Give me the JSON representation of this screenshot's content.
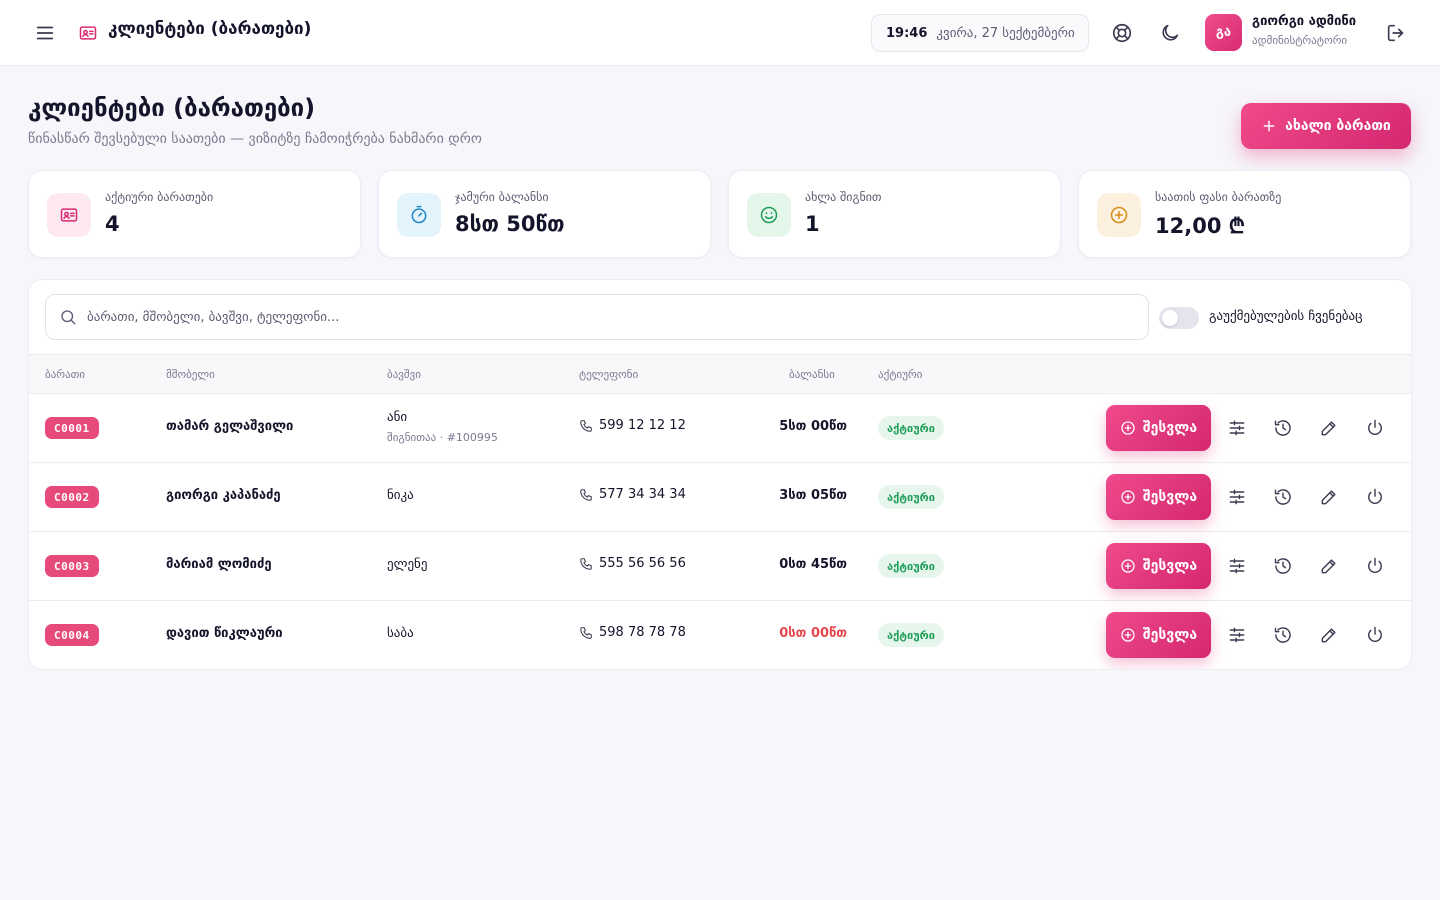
{
  "header": {
    "title": "კლიენტები (ბარათები)",
    "clock_time": "19:46",
    "clock_date": "კვირა, 27 სექტემბერი",
    "user": {
      "initials": "გა",
      "name": "გიორგი ადმინი",
      "role": "ადმინისტრატორი"
    }
  },
  "page": {
    "title": "კლიენტები (ბარათები)",
    "subtitle": "წინასწარ შევსებული საათები — ვიზიტზე ჩამოიჭრება ნახმარი დრო",
    "new_button": "ახალი ბარათი"
  },
  "stats": [
    {
      "label": "აქტიური ბარათები",
      "value": "4",
      "icon": "id-card-icon",
      "color": "#d92b73"
    },
    {
      "label": "ჯამური ბალანსი",
      "value": "8სთ 50წთ",
      "icon": "timer-icon",
      "color": "#1e88c7"
    },
    {
      "label": "ახლა შიგნით",
      "value": "1",
      "icon": "smile-icon",
      "color": "#1e9e57"
    },
    {
      "label": "საათის ფასი ბარათზე",
      "value": "12,00 ₾",
      "icon": "plus-circle-icon",
      "color": "#d98b1a"
    }
  ],
  "search": {
    "placeholder": "ბარათი, მშობელი, ბავშვი, ტელეფონი...",
    "toggle_label": "გაუქმებულების ჩვენებაც"
  },
  "table": {
    "headers": {
      "card": "ბარათი",
      "parent": "მშობელი",
      "child": "ბავშვი",
      "phone": "ტელეფონი",
      "balance": "ბალანსი",
      "status": "აქტიური"
    },
    "rows": [
      {
        "code": "C0001",
        "parent": "თამარ გელაშვილი",
        "child": "ანი",
        "child_sub": "შიგნითაა · #100995",
        "phone": "599 12 12 12",
        "balance": "5სთ 00წთ",
        "status": "აქტიური",
        "action": "შესვლა"
      },
      {
        "code": "C0002",
        "parent": "გიორგი კაპანაძე",
        "child": "ნიკა",
        "child_sub": "",
        "phone": "577 34 34 34",
        "balance": "3სთ 05წთ",
        "status": "აქტიური",
        "action": "შესვლა"
      },
      {
        "code": "C0003",
        "parent": "მარიამ ლომიძე",
        "child": "ელენე",
        "child_sub": "",
        "phone": "555 56 56 56",
        "balance": "0სთ 45წთ",
        "status": "აქტიური",
        "action": "შესვლა"
      },
      {
        "code": "C0004",
        "parent": "დავით წიკლაური",
        "child": "საბა",
        "child_sub": "",
        "phone": "598 78 78 78",
        "balance": "0სთ 00წთ",
        "status": "აქტიური",
        "action": "შესვლა"
      }
    ]
  },
  "colors": {
    "accent": "#e23a7e",
    "zero_balance": "#e5484d",
    "status_green": "#1e9e57"
  }
}
